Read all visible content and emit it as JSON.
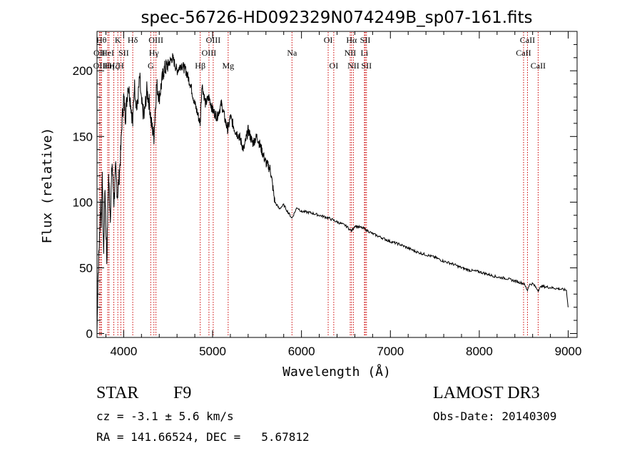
{
  "chart_data": {
    "type": "line",
    "title": "spec-56726-HD092329N074249B_sp07-161.fits",
    "xlabel": "Wavelength (Å)",
    "ylabel": "Flux (relative)",
    "xlim": [
      3700,
      9100
    ],
    "ylim": [
      -3,
      230
    ],
    "xticks": [
      4000,
      5000,
      6000,
      7000,
      8000,
      9000
    ],
    "yticks": [
      0,
      50,
      100,
      150,
      200
    ],
    "grid": false,
    "series": [
      {
        "name": "flux",
        "x": [
          3700,
          3710,
          3720,
          3730,
          3740,
          3750,
          3760,
          3775,
          3790,
          3810,
          3830,
          3850,
          3870,
          3890,
          3910,
          3930,
          3950,
          3968,
          3980,
          4000,
          4020,
          4050,
          4080,
          4102,
          4120,
          4150,
          4180,
          4200,
          4230,
          4260,
          4290,
          4310,
          4340,
          4370,
          4400,
          4450,
          4500,
          4550,
          4600,
          4650,
          4700,
          4750,
          4800,
          4861,
          4880,
          4920,
          4960,
          5000,
          5050,
          5100,
          5150,
          5172,
          5200,
          5250,
          5300,
          5350,
          5400,
          5450,
          5500,
          5550,
          5600,
          5650,
          5700,
          5750,
          5800,
          5850,
          5893,
          5950,
          6000,
          6100,
          6200,
          6300,
          6400,
          6500,
          6563,
          6600,
          6700,
          6800,
          6900,
          7000,
          7100,
          7200,
          7300,
          7400,
          7500,
          7600,
          7700,
          7800,
          7900,
          8000,
          8100,
          8200,
          8300,
          8400,
          8450,
          8500,
          8542,
          8560,
          8600,
          8662,
          8700,
          8800,
          8900,
          8980,
          9000
        ],
        "y": [
          0,
          40,
          60,
          75,
          100,
          85,
          120,
          60,
          110,
          55,
          120,
          90,
          130,
          100,
          125,
          105,
          120,
          140,
          160,
          180,
          165,
          190,
          175,
          160,
          190,
          170,
          195,
          175,
          165,
          185,
          175,
          160,
          150,
          190,
          180,
          200,
          205,
          210,
          200,
          205,
          200,
          190,
          175,
          160,
          190,
          175,
          180,
          170,
          165,
          175,
          160,
          155,
          165,
          155,
          150,
          140,
          155,
          145,
          150,
          140,
          130,
          125,
          100,
          95,
          98,
          92,
          88,
          96,
          93,
          92,
          90,
          88,
          85,
          82,
          78,
          82,
          80,
          76,
          73,
          70,
          68,
          65,
          62,
          60,
          58,
          55,
          53,
          50,
          48,
          47,
          45,
          43,
          42,
          40,
          39,
          38,
          33,
          37,
          38,
          33,
          36,
          35,
          34,
          33,
          20
        ]
      }
    ],
    "lines": [
      {
        "wavelength": 3727,
        "label": "OII",
        "row": 1
      },
      {
        "wavelength": 3740,
        "label": "OIII",
        "row": 2
      },
      {
        "wavelength": 3750,
        "label": "Hθ",
        "row": 0
      },
      {
        "wavelength": 3820,
        "label": "HeI",
        "row": 1
      },
      {
        "wavelength": 3835,
        "label": "Hη",
        "row": 2
      },
      {
        "wavelength": 3889,
        "label": "Hζ",
        "row": 2
      },
      {
        "wavelength": 3934,
        "label": "K",
        "row": 0
      },
      {
        "wavelength": 3968,
        "label": "H",
        "row": 2
      },
      {
        "wavelength": 4000,
        "label": "SII",
        "row": 1
      },
      {
        "wavelength": 4102,
        "label": "Hδ",
        "row": 0
      },
      {
        "wavelength": 4304,
        "label": "G",
        "row": 2
      },
      {
        "wavelength": 4340,
        "label": "Hγ",
        "row": 1
      },
      {
        "wavelength": 4363,
        "label": "OIII",
        "row": 0
      },
      {
        "wavelength": 4861,
        "label": "Hβ",
        "row": 2
      },
      {
        "wavelength": 4959,
        "label": "OIII",
        "row": 1
      },
      {
        "wavelength": 5007,
        "label": "OIII",
        "row": 0
      },
      {
        "wavelength": 5175,
        "label": "Mg",
        "row": 2
      },
      {
        "wavelength": 5893,
        "label": "Na",
        "row": 1
      },
      {
        "wavelength": 6300,
        "label": "OI",
        "row": 0
      },
      {
        "wavelength": 6363,
        "label": "OI",
        "row": 2
      },
      {
        "wavelength": 6548,
        "label": "NII",
        "row": 1
      },
      {
        "wavelength": 6563,
        "label": "Hα",
        "row": 0
      },
      {
        "wavelength": 6584,
        "label": "NII",
        "row": 2
      },
      {
        "wavelength": 6708,
        "label": "Li",
        "row": 1
      },
      {
        "wavelength": 6717,
        "label": "SII",
        "row": 0
      },
      {
        "wavelength": 6731,
        "label": "SII",
        "row": 2
      },
      {
        "wavelength": 8498,
        "label": "CaII",
        "row": 1
      },
      {
        "wavelength": 8542,
        "label": "CaII",
        "row": 0
      },
      {
        "wavelength": 8662,
        "label": "CaII",
        "row": 2
      }
    ]
  },
  "info": {
    "object_type": "STAR",
    "object_class": "F9",
    "survey": "LAMOST DR3",
    "cz": "cz = -3.1 ± 5.6 km/s",
    "obs_date": "Obs-Date: 20140309",
    "radec": "RA = 141.66524, DEC =   5.67812"
  },
  "colors": {
    "axis": "#000000",
    "line_marker": "#cc0000",
    "background": "#ffffff"
  }
}
